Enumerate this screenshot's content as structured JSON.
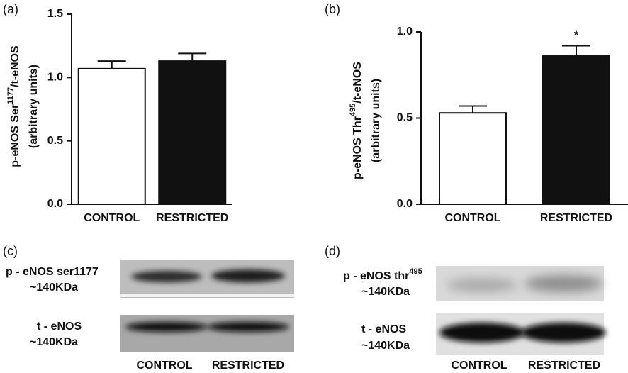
{
  "chart_data": [
    {
      "type": "bar",
      "panel": "(a)",
      "ylabel": {
        "prefix": "p-eNOS Ser",
        "sup": "1177",
        "suffix": "/t-eNOS"
      },
      "ylabel2": "(arbitrary units)",
      "categories": [
        "CONTROL",
        "RESTRICTED"
      ],
      "values": [
        1.07,
        1.13
      ],
      "errors": [
        0.06,
        0.06
      ],
      "colors": [
        "#ffffff",
        "#111111"
      ],
      "ylim": [
        0,
        1.5
      ],
      "yticks": [
        {
          "value": 0,
          "label": "0.0"
        },
        0.5,
        {
          "value": 1,
          "label": "1.0"
        },
        1.5
      ]
    },
    {
      "type": "bar",
      "panel": "(b)",
      "ylabel": {
        "prefix": "p-eNOS Thr",
        "sup": "495",
        "suffix": "/t-eNOS"
      },
      "ylabel2": "(arbitrary units)",
      "categories": [
        "CONTROL",
        "RESTRICTED"
      ],
      "values": [
        0.53,
        0.86
      ],
      "errors": [
        0.04,
        0.06
      ],
      "colors": [
        "#ffffff",
        "#111111"
      ],
      "annotations": [
        null,
        "*"
      ],
      "ylim": [
        0,
        1
      ],
      "yticks": [
        {
          "value": 0,
          "label": "0.0"
        },
        0.5,
        {
          "value": 1,
          "label": "1.0"
        }
      ]
    }
  ],
  "blots": {
    "c": {
      "panel": "(c)",
      "row1": "p - eNOS ser1177",
      "mw1": "~140KDa",
      "row2": "t - eNOS",
      "mw2": "~140KDa",
      "lanes": [
        "CONTROL",
        "RESTRICTED"
      ]
    },
    "d": {
      "panel": "(d)",
      "row1": "p - eNOS thr",
      "row1sup": "495",
      "mw1": "~140KDa",
      "row2": "t - eNOS",
      "mw2": "~140KDa",
      "lanes": [
        "CONTROL",
        "RESTRICTED"
      ]
    }
  }
}
